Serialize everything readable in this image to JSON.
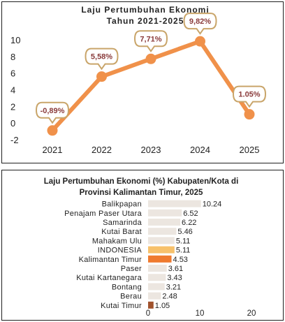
{
  "top_chart": {
    "title_line1": "Laju Pertumbuhan Ekonomi",
    "title_line2": "Tahun 2021-2025"
  },
  "bottom_chart": {
    "title_line1": "Laju Pertumbuhan Ekonomi (%) Kabupaten/Kota di",
    "title_line2": "Provinsi Kalimantan Timur, 2025"
  },
  "chart_data": [
    {
      "type": "line",
      "title": "Laju Pertumbuhan Ekonomi Tahun 2021-2025",
      "x": [
        "2021",
        "2022",
        "2023",
        "2024",
        "2025"
      ],
      "values": [
        -0.89,
        5.58,
        7.71,
        9.82,
        1.05
      ],
      "data_labels": [
        "-0,89%",
        "5,58%",
        "7,71%",
        "9,82%",
        "1.05%"
      ],
      "y_ticks": [
        "10",
        "8",
        "6",
        "4",
        "2",
        "0",
        "-2"
      ],
      "ylim": [
        -2,
        10
      ],
      "grid": false,
      "colors": {
        "line": "#f0914a",
        "callout_border": "#c9a56a",
        "label_text": "#8a3b3b"
      }
    },
    {
      "type": "bar",
      "orientation": "horizontal",
      "title": "Laju Pertumbuhan Ekonomi (%) Kabupaten/Kota di Provinsi Kalimantan Timur, 2025",
      "categories": [
        "Balikpapan",
        "Penajam Paser Utara",
        "Samarinda",
        "Kutai Barat",
        "Mahakam Ulu",
        "INDONESIA",
        "Kalimantan Timur",
        "Paser",
        "Kutai Kartanegara",
        "Bontang",
        "Berau",
        "Kutai Timur"
      ],
      "values": [
        10.24,
        6.52,
        6.22,
        5.46,
        5.11,
        5.11,
        4.53,
        3.61,
        3.43,
        3.21,
        2.48,
        1.05
      ],
      "value_labels": [
        "10.24",
        "6.52",
        "6.22",
        "5.46",
        "5.11",
        "5.11",
        "4.53",
        "3.61",
        "3.43",
        "3.21",
        "2.48",
        "1.05"
      ],
      "x_ticks": [
        "0",
        "10",
        "20"
      ],
      "xlim": [
        0,
        20
      ],
      "grid": false,
      "colors": {
        "default": "#ece6e0",
        "INDONESIA": "#f7c16b",
        "Kalimantan Timur": "#ef7a2e",
        "Kutai Timur": "#a0522d"
      }
    }
  ]
}
